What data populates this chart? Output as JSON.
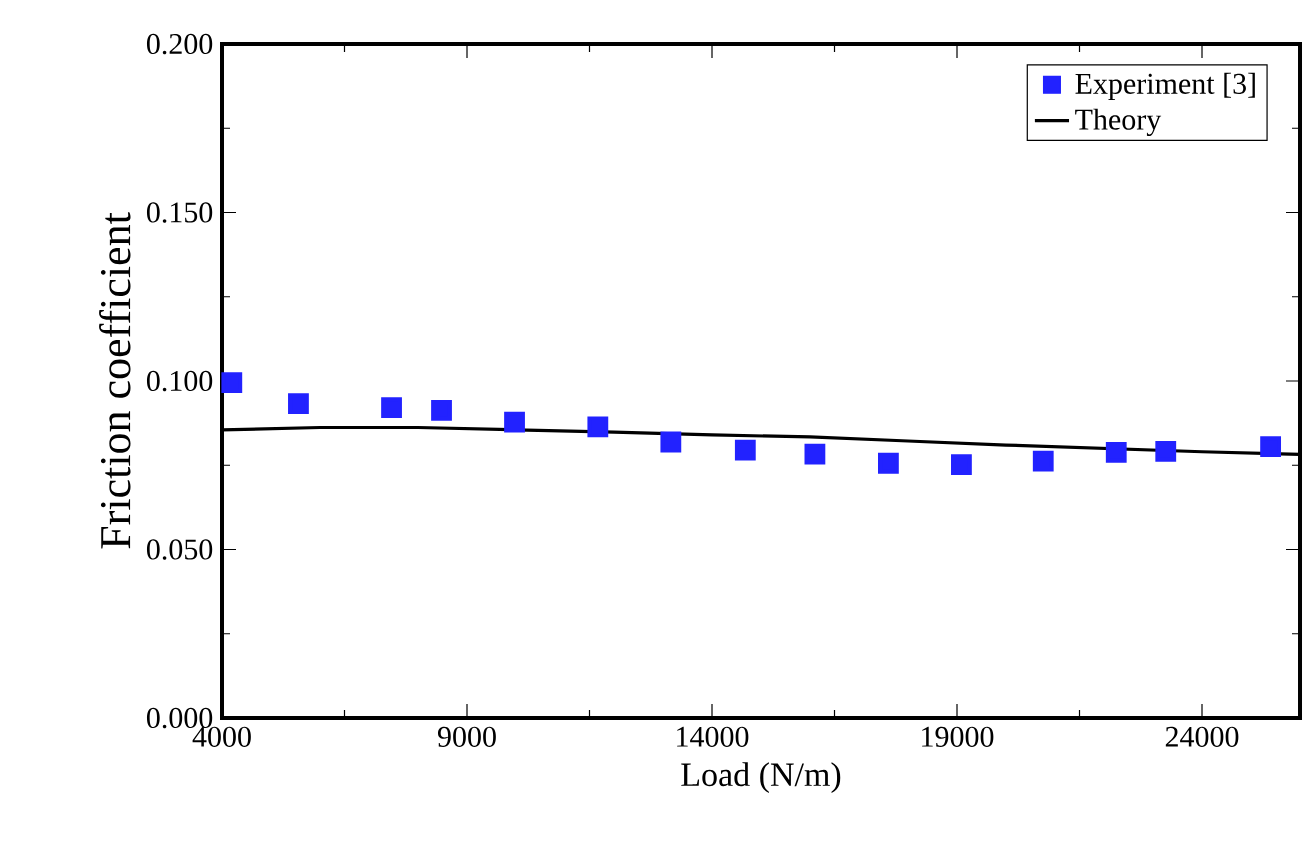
{
  "chart_data": {
    "type": "scatter",
    "xlabel": "Load (N/m)",
    "ylabel": "Friction coefficient",
    "xlim": [
      4000,
      26000
    ],
    "xticks": [
      4000,
      9000,
      14000,
      19000,
      24000
    ],
    "ylim": [
      0,
      0.2
    ],
    "yticks": [
      {
        "value": 0,
        "label": "0.000"
      },
      {
        "value": 0.05,
        "label": "0.050"
      },
      {
        "value": 0.1,
        "label": "0.100"
      },
      {
        "value": 0.15,
        "label": "0.150"
      },
      {
        "value": 0.2,
        "label": "0.200"
      }
    ],
    "legend": "top right",
    "grid": false,
    "series": [
      {
        "name": "Experiment [3]",
        "marker": "square",
        "color": "#2222ff",
        "x": [
          4200,
          5560,
          7460,
          8480,
          9970,
          11670,
          13160,
          14680,
          16100,
          17600,
          19090,
          20760,
          22250,
          23260,
          25400
        ],
        "values": [
          0.0995,
          0.0933,
          0.0921,
          0.0913,
          0.0878,
          0.0864,
          0.0819,
          0.0795,
          0.0783,
          0.0756,
          0.0752,
          0.0762,
          0.0788,
          0.0791,
          0.0805
        ]
      },
      {
        "name": "Theory",
        "type": "line",
        "line_style": "solid",
        "color": "#000000",
        "x": [
          4000,
          6000,
          8000,
          10000,
          12000,
          14000,
          16000,
          18000,
          20000,
          22000,
          24000,
          26000
        ],
        "values": [
          0.0855,
          0.0862,
          0.0862,
          0.0855,
          0.0848,
          0.084,
          0.0834,
          0.0822,
          0.081,
          0.08,
          0.079,
          0.0782
        ]
      }
    ]
  }
}
